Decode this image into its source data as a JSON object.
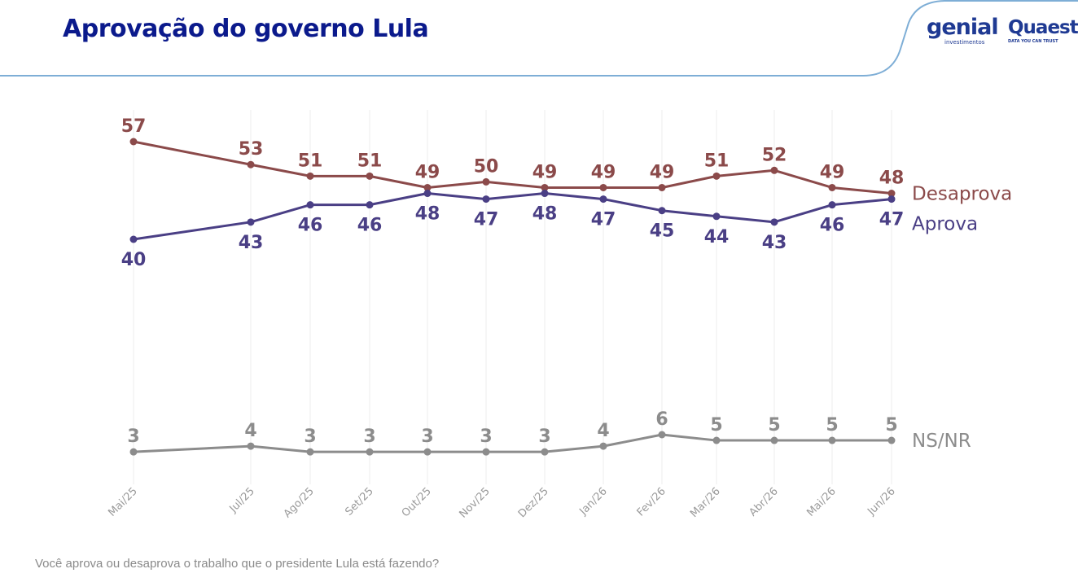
{
  "header": {
    "title": "Aprovação do governo Lula",
    "logos": {
      "genial": "genial",
      "genial_sub": "investimentos",
      "quaest": "Quaest",
      "quaest_sub": "DATA YOU CAN TRUST"
    }
  },
  "footnote": "Você aprova ou desaprova o trabalho que o presidente Lula está fazendo?",
  "chart_data": {
    "type": "line",
    "categories": [
      "Mai/25",
      "Jul/25",
      "Ago/25",
      "Set/25",
      "Out/25",
      "Nov/25",
      "Dez/25",
      "Jan/26",
      "Fev/26",
      "Mar/26",
      "Abr/26",
      "Mai/26",
      "Jun/26"
    ],
    "series": [
      {
        "name": "Desaprova",
        "color": "#8b4a4a",
        "values": [
          57,
          53,
          51,
          51,
          49,
          50,
          49,
          49,
          49,
          51,
          52,
          49,
          48
        ]
      },
      {
        "name": "Aprova",
        "color": "#4a3f85",
        "values": [
          40,
          43,
          46,
          46,
          48,
          47,
          48,
          47,
          45,
          44,
          43,
          46,
          47
        ]
      },
      {
        "name": "NS/NR",
        "color": "#8c8c8c",
        "values": [
          3,
          4,
          3,
          3,
          3,
          3,
          3,
          4,
          6,
          5,
          5,
          5,
          5
        ]
      }
    ],
    "title": "Aprovação do governo Lula",
    "xlabel": "",
    "ylabel": "",
    "grid": "vertical",
    "legend": "right-end-of-lines"
  }
}
